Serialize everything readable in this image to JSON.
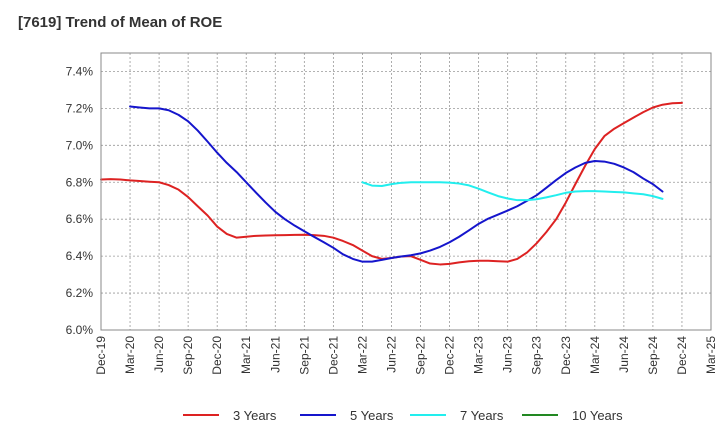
{
  "chart_data": {
    "type": "line",
    "title": "[7619]  Trend of Mean of ROE",
    "xlabel": "",
    "ylabel": "",
    "ylim": [
      6.0,
      7.5
    ],
    "y_ticks": [
      "6.0%",
      "6.2%",
      "6.4%",
      "6.6%",
      "6.8%",
      "7.0%",
      "7.2%",
      "7.4%"
    ],
    "y_tick_values": [
      6.0,
      6.2,
      6.4,
      6.6,
      6.8,
      7.0,
      7.2,
      7.4
    ],
    "categories": [
      "Dec-19",
      "Mar-20",
      "Jun-20",
      "Sep-20",
      "Dec-20",
      "Mar-21",
      "Jun-21",
      "Sep-21",
      "Dec-21",
      "Mar-22",
      "Jun-22",
      "Sep-22",
      "Dec-22",
      "Mar-23",
      "Jun-23",
      "Sep-23",
      "Dec-23",
      "Mar-24",
      "Jun-24",
      "Sep-24",
      "Dec-24",
      "Mar-25"
    ],
    "grid": true,
    "legend_placement": "bottom",
    "series": [
      {
        "name": "3 Years",
        "color": "#dd2222",
        "points": [
          [
            0,
            6.815
          ],
          [
            0.33,
            6.817
          ],
          [
            0.67,
            6.815
          ],
          [
            1,
            6.81
          ],
          [
            1.33,
            6.807
          ],
          [
            1.67,
            6.803
          ],
          [
            2,
            6.8
          ],
          [
            2.33,
            6.785
          ],
          [
            2.67,
            6.76
          ],
          [
            3,
            6.72
          ],
          [
            3.33,
            6.67
          ],
          [
            3.67,
            6.62
          ],
          [
            4,
            6.56
          ],
          [
            4.33,
            6.52
          ],
          [
            4.67,
            6.5
          ],
          [
            5,
            6.505
          ],
          [
            5.33,
            6.51
          ],
          [
            5.67,
            6.512
          ],
          [
            6,
            6.513
          ],
          [
            6.33,
            6.514
          ],
          [
            6.67,
            6.515
          ],
          [
            7,
            6.516
          ],
          [
            7.33,
            6.514
          ],
          [
            7.67,
            6.51
          ],
          [
            8,
            6.5
          ],
          [
            8.33,
            6.482
          ],
          [
            8.67,
            6.46
          ],
          [
            9,
            6.43
          ],
          [
            9.33,
            6.4
          ],
          [
            9.67,
            6.385
          ],
          [
            10,
            6.39
          ],
          [
            10.33,
            6.398
          ],
          [
            10.67,
            6.4
          ],
          [
            11,
            6.38
          ],
          [
            11.33,
            6.36
          ],
          [
            11.67,
            6.355
          ],
          [
            12,
            6.358
          ],
          [
            12.33,
            6.366
          ],
          [
            12.67,
            6.372
          ],
          [
            13,
            6.375
          ],
          [
            13.33,
            6.375
          ],
          [
            13.67,
            6.372
          ],
          [
            14,
            6.37
          ],
          [
            14.33,
            6.385
          ],
          [
            14.67,
            6.42
          ],
          [
            15,
            6.47
          ],
          [
            15.33,
            6.53
          ],
          [
            15.67,
            6.6
          ],
          [
            16,
            6.69
          ],
          [
            16.33,
            6.79
          ],
          [
            16.67,
            6.89
          ],
          [
            17,
            6.98
          ],
          [
            17.33,
            7.05
          ],
          [
            17.67,
            7.09
          ],
          [
            18,
            7.12
          ],
          [
            18.33,
            7.15
          ],
          [
            18.67,
            7.18
          ],
          [
            19,
            7.205
          ],
          [
            19.33,
            7.22
          ],
          [
            19.67,
            7.228
          ],
          [
            20,
            7.23
          ]
        ]
      },
      {
        "name": "5 Years",
        "color": "#1515cc",
        "points": [
          [
            1,
            7.21
          ],
          [
            1.33,
            7.205
          ],
          [
            1.67,
            7.2
          ],
          [
            2,
            7.2
          ],
          [
            2.33,
            7.19
          ],
          [
            2.67,
            7.165
          ],
          [
            3,
            7.13
          ],
          [
            3.33,
            7.08
          ],
          [
            3.67,
            7.02
          ],
          [
            4,
            6.96
          ],
          [
            4.33,
            6.905
          ],
          [
            4.67,
            6.855
          ],
          [
            5,
            6.8
          ],
          [
            5.33,
            6.745
          ],
          [
            5.67,
            6.69
          ],
          [
            6,
            6.64
          ],
          [
            6.33,
            6.6
          ],
          [
            6.67,
            6.565
          ],
          [
            7,
            6.535
          ],
          [
            7.33,
            6.505
          ],
          [
            7.67,
            6.475
          ],
          [
            8,
            6.445
          ],
          [
            8.33,
            6.41
          ],
          [
            8.67,
            6.385
          ],
          [
            9,
            6.37
          ],
          [
            9.33,
            6.37
          ],
          [
            9.67,
            6.38
          ],
          [
            10,
            6.39
          ],
          [
            10.33,
            6.398
          ],
          [
            10.67,
            6.405
          ],
          [
            11,
            6.415
          ],
          [
            11.33,
            6.43
          ],
          [
            11.67,
            6.45
          ],
          [
            12,
            6.475
          ],
          [
            12.33,
            6.505
          ],
          [
            12.67,
            6.54
          ],
          [
            13,
            6.575
          ],
          [
            13.33,
            6.603
          ],
          [
            13.67,
            6.625
          ],
          [
            14,
            6.647
          ],
          [
            14.33,
            6.67
          ],
          [
            14.67,
            6.7
          ],
          [
            15,
            6.73
          ],
          [
            15.33,
            6.77
          ],
          [
            15.67,
            6.812
          ],
          [
            16,
            6.85
          ],
          [
            16.33,
            6.88
          ],
          [
            16.67,
            6.905
          ],
          [
            17,
            6.915
          ],
          [
            17.33,
            6.912
          ],
          [
            17.67,
            6.9
          ],
          [
            18,
            6.88
          ],
          [
            18.33,
            6.855
          ],
          [
            18.67,
            6.82
          ],
          [
            19,
            6.79
          ],
          [
            19.33,
            6.75
          ]
        ]
      },
      {
        "name": "7 Years",
        "color": "#22eeee",
        "points": [
          [
            9,
            6.8
          ],
          [
            9.33,
            6.782
          ],
          [
            9.67,
            6.78
          ],
          [
            10,
            6.79
          ],
          [
            10.33,
            6.797
          ],
          [
            10.67,
            6.8
          ],
          [
            11,
            6.8
          ],
          [
            11.33,
            6.8
          ],
          [
            11.67,
            6.8
          ],
          [
            12,
            6.798
          ],
          [
            12.33,
            6.793
          ],
          [
            12.67,
            6.783
          ],
          [
            13,
            6.765
          ],
          [
            13.33,
            6.745
          ],
          [
            13.67,
            6.725
          ],
          [
            14,
            6.712
          ],
          [
            14.33,
            6.703
          ],
          [
            14.67,
            6.703
          ],
          [
            15,
            6.708
          ],
          [
            15.33,
            6.718
          ],
          [
            15.67,
            6.73
          ],
          [
            16,
            6.743
          ],
          [
            16.33,
            6.75
          ],
          [
            16.67,
            6.752
          ],
          [
            17,
            6.752
          ],
          [
            17.33,
            6.75
          ],
          [
            17.67,
            6.747
          ],
          [
            18,
            6.745
          ],
          [
            18.33,
            6.74
          ],
          [
            18.67,
            6.735
          ],
          [
            19,
            6.725
          ],
          [
            19.33,
            6.71
          ]
        ]
      },
      {
        "name": "10 Years",
        "color": "#228822",
        "points": []
      }
    ]
  }
}
